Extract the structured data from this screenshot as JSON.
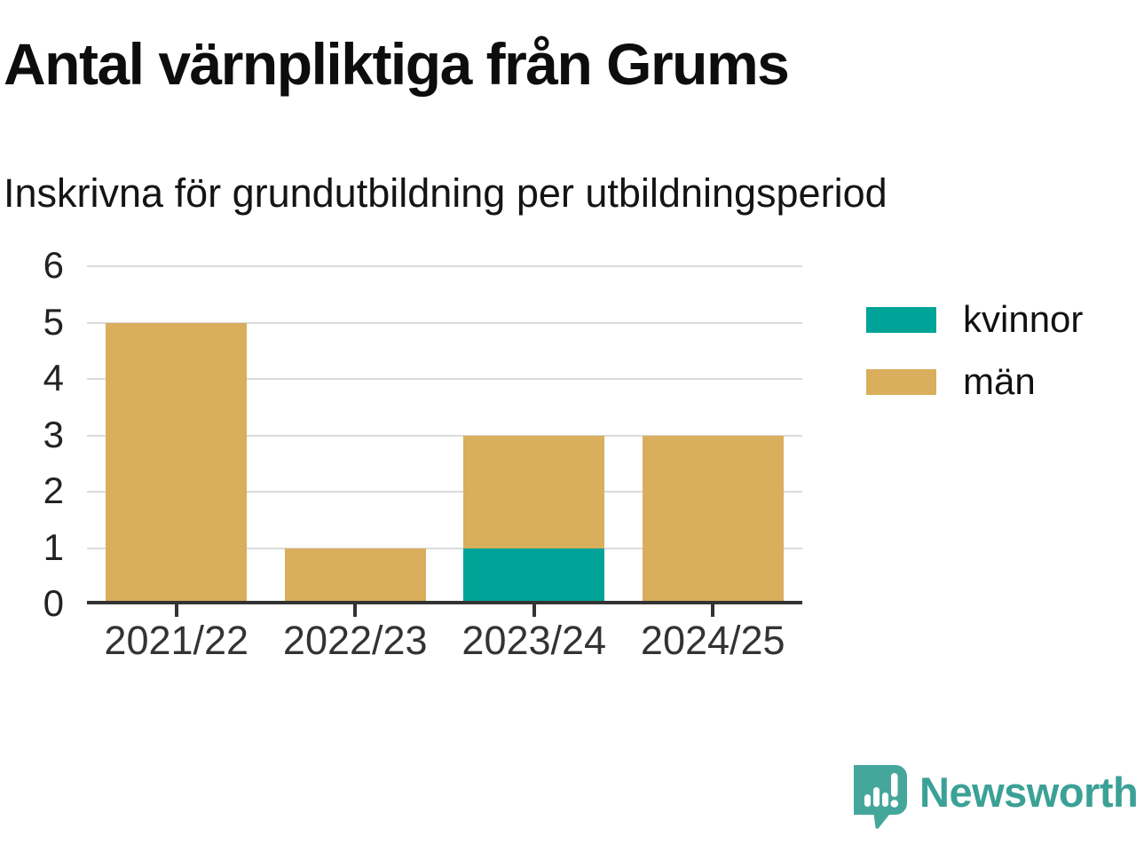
{
  "title": "Antal värnpliktiga från Grums",
  "subtitle": "Inskrivna för grundutbildning per utbildningsperiod",
  "chart_data": {
    "type": "bar",
    "stacked": true,
    "title": "Antal värnpliktiga från Grums",
    "subtitle": "Inskrivna för grundutbildning per utbildningsperiod",
    "categories": [
      "2021/22",
      "2022/23",
      "2023/24",
      "2024/25"
    ],
    "series": [
      {
        "name": "kvinnor",
        "color": "#00A398",
        "values": [
          0,
          0,
          1,
          0
        ]
      },
      {
        "name": "män",
        "color": "#D9AE5C",
        "values": [
          5,
          1,
          2,
          3
        ]
      }
    ],
    "totals": [
      5,
      1,
      3,
      3
    ],
    "xlabel": "",
    "ylabel": "",
    "ylim": [
      0,
      6
    ],
    "yticks": [
      0,
      1,
      2,
      3,
      4,
      5,
      6
    ],
    "grid": true,
    "legend_position": "right"
  },
  "legend": {
    "items": [
      {
        "label": "kvinnor",
        "color": "#00A398"
      },
      {
        "label": "män",
        "color": "#D9AE5C"
      }
    ]
  },
  "branding": {
    "logo_text": "Newsworthy",
    "logo_icon": "speech-bubble-bar-chart-icon",
    "icon_color": "#45A79C",
    "text_color": "#3BA196"
  },
  "colors": {
    "background": "#FFFFFF",
    "gridline": "#DBDBDB",
    "axis": "#333333",
    "title_text": "#0D0D0D",
    "kvinnor": "#00A398",
    "man": "#D9AE5C"
  }
}
